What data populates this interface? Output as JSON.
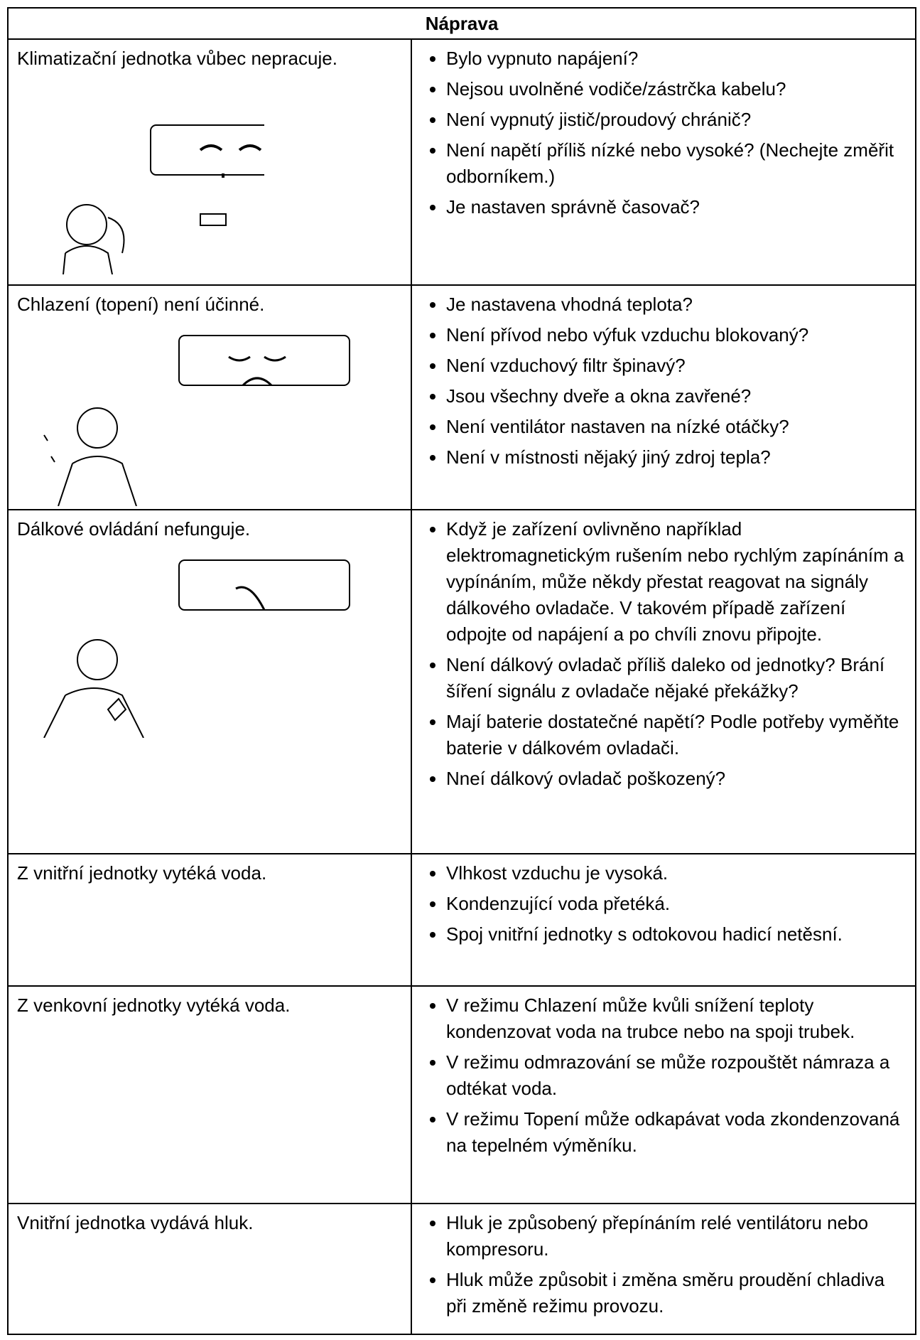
{
  "header": {
    "title": "Náprava"
  },
  "rows": [
    {
      "problem": "Klimatizační jednotka vůbec nepracuje.",
      "checks": [
        "Bylo vypnuto napájení?",
        "Nejsou uvolněné vodiče/zástrčka kabelu?",
        "Není vypnutý jistič/proudový chránič?",
        "Není napětí příliš nízké nebo vysoké? (Nechejte změřit odborníkem.)",
        "Je nastaven správně časovač?"
      ]
    },
    {
      "problem": "Chlazení (topení) není účinné.",
      "checks": [
        "Je nastavena vhodná teplota?",
        "Není přívod nebo výfuk vzduchu blokovaný?",
        "Není vzduchový filtr špinavý?",
        "Jsou všechny dveře a okna zavřené?",
        "Není  ventilátor nastaven na nízké otáčky?",
        "Není v místnosti nějaký jiný zdroj tepla?"
      ]
    },
    {
      "problem": "Dálkové ovládání nefunguje.",
      "checks": [
        "Když je zařízení ovlivněno například elektromagnetickým rušením nebo rychlým zapínáním a vypínáním, může někdy přestat reagovat na signály dálkového ovladače. V takovém případě zařízení odpojte od napájení a po chvíli znovu připojte.",
        "Není dálkový ovladač příliš daleko od jednotky? Brání šíření signálu z ovladače nějaké překážky?",
        "Mají baterie dostatečné napětí? Podle potřeby vyměňte baterie v dálkovém ovladači.",
        "Nneí dálkový ovladač poškozený?"
      ]
    },
    {
      "problem": "Z vnitřní jednotky vytéká voda.",
      "checks": [
        "Vlhkost vzduchu je vysoká.",
        "Kondenzující voda přetéká.",
        "Spoj vnitřní jednotky s odtokovou hadicí netěsní."
      ]
    },
    {
      "problem": "Z venkovní jednotky vytéká voda.",
      "checks": [
        "V režimu Chlazení může kvůli snížení teploty kondenzovat voda na trubce nebo na spoji trubek.",
        "V režimu odmrazování se může rozpouštět námraza a odtékat voda.",
        "V režimu Topení může odkapávat voda zkondenzovaná na tepelném výměníku."
      ]
    },
    {
      "problem": "Vnitřní jednotka vydává hluk.",
      "checks": [
        "Hluk je způsobený přepínáním relé ventilátoru nebo kompresoru.",
        "Hluk může způsobit i změna směru proudění chladiva při změně režimu provozu."
      ]
    }
  ]
}
